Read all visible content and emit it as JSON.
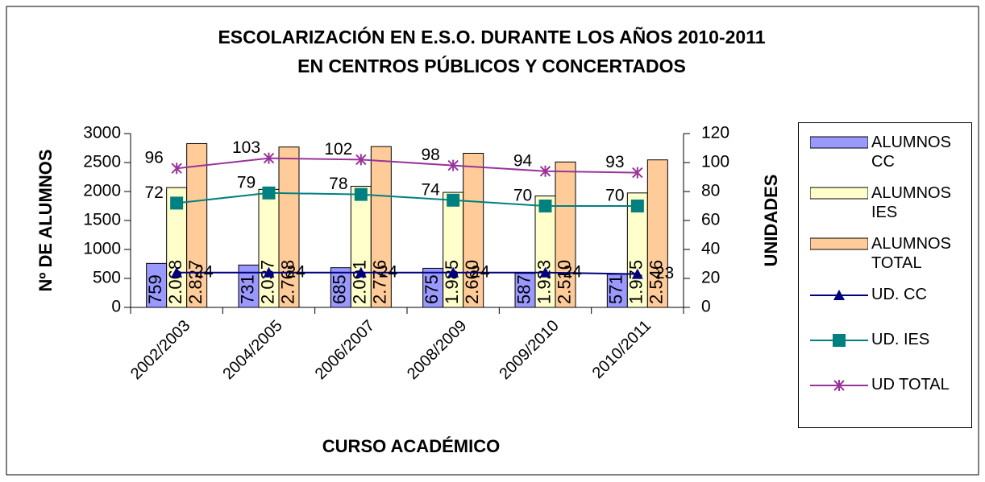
{
  "chart_data": {
    "type": "bar_line",
    "title": [
      "ESCOLARIZACIÓN EN E.S.O. DURANTE LOS AÑOS 2010-2011",
      "EN CENTROS PÚBLICOS Y CONCERTADOS"
    ],
    "xlabel": "CURSO ACADÉMICO",
    "ylabel": "Nº DE ALUMNOS",
    "y2label": "UNIDADES",
    "categories": [
      "2002/2003",
      "2004/2005",
      "2006/2007",
      "2008/2009",
      "2009/2010",
      "2010/2011"
    ],
    "ylim": [
      0,
      3000
    ],
    "yticks": [
      0,
      500,
      1000,
      1500,
      2000,
      2500,
      3000
    ],
    "y2lim": [
      0,
      120
    ],
    "y2ticks": [
      0,
      20,
      40,
      60,
      80,
      100,
      120
    ],
    "legend": "right",
    "series": [
      {
        "name": "ALUMNOS CC",
        "kind": "bar",
        "color": "#9999ff",
        "values": [
          759,
          731,
          685,
          675,
          587,
          571
        ]
      },
      {
        "name": "ALUMNOS IES",
        "kind": "bar",
        "color": "#ffffcc",
        "values": [
          2068,
          2037,
          2091,
          1985,
          1923,
          1975
        ],
        "value_labels": [
          "2.068",
          "2.037",
          "2.091",
          "1.985",
          "1.923",
          "1.975"
        ]
      },
      {
        "name": "ALUMNOS TOTAL",
        "kind": "bar",
        "color": "#ffcc99",
        "values": [
          2827,
          2768,
          2776,
          2660,
          2510,
          2546
        ],
        "value_labels": [
          "2.827",
          "2.768",
          "2.776",
          "2.660",
          "2.510",
          "2.546"
        ]
      },
      {
        "name": "UD. CC",
        "kind": "line",
        "marker": "triangle",
        "axis": "y2",
        "color": "#000080",
        "values": [
          24,
          24,
          24,
          24,
          24,
          23
        ]
      },
      {
        "name": "UD. IES",
        "kind": "line",
        "marker": "square",
        "axis": "y2",
        "color": "#008080",
        "values": [
          72,
          79,
          78,
          74,
          70,
          70
        ]
      },
      {
        "name": "UD TOTAL",
        "kind": "line",
        "marker": "star",
        "axis": "y2",
        "color": "#993399",
        "values": [
          96,
          103,
          102,
          98,
          94,
          93
        ]
      }
    ]
  }
}
